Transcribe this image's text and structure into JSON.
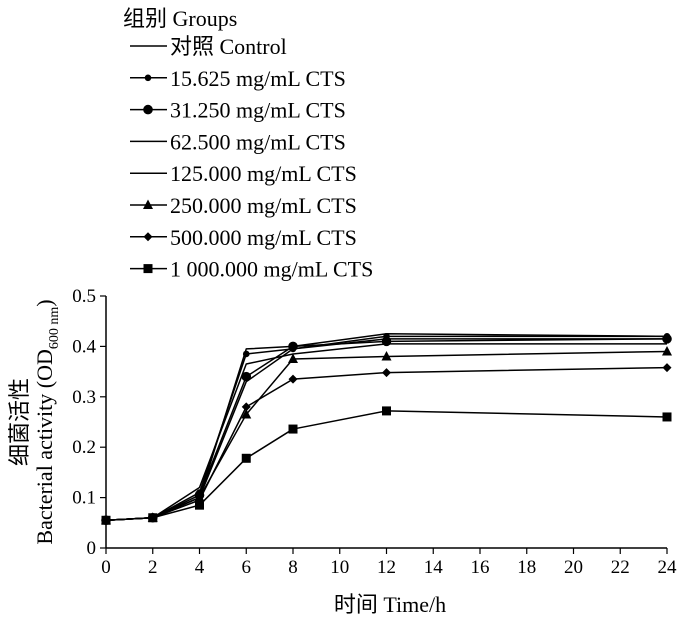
{
  "chart_data": {
    "type": "line",
    "legend_title": "组别 Groups",
    "legend_position": "top-left",
    "xlabel": "时间  Time/h",
    "ylabel_cn": "细菌活性",
    "ylabel_en_prefix": "Bacterial activity (OD",
    "ylabel_en_sub": "600 nm",
    "ylabel_en_suffix": ")",
    "xlim": [
      0,
      24
    ],
    "ylim": [
      0,
      0.5
    ],
    "x_ticks": [
      "0",
      "2",
      "4",
      "6",
      "8",
      "10",
      "12",
      "14",
      "16",
      "18",
      "20",
      "22",
      "24"
    ],
    "y_ticks": [
      "0",
      "0.1",
      "0.2",
      "0.3",
      "0.4",
      "0.5"
    ],
    "grid": false,
    "x": [
      0,
      2,
      4,
      6,
      8,
      12,
      24
    ],
    "series": [
      {
        "name": "对照  Control",
        "marker": "none",
        "values": [
          0.055,
          0.06,
          0.1,
          0.395,
          0.4,
          0.425,
          0.42
        ]
      },
      {
        "name": "15.625  mg/mL CTS",
        "marker": "circle-small",
        "values": [
          0.055,
          0.06,
          0.11,
          0.385,
          0.395,
          0.42,
          0.42
        ]
      },
      {
        "name": "31.250  mg/mL CTS",
        "marker": "circle",
        "values": [
          0.055,
          0.06,
          0.105,
          0.34,
          0.4,
          0.41,
          0.415
        ]
      },
      {
        "name": "62.500  mg/mL CTS",
        "marker": "none",
        "values": [
          0.055,
          0.06,
          0.1,
          0.33,
          0.395,
          0.415,
          0.415
        ]
      },
      {
        "name": "125.000  mg/mL CTS",
        "marker": "none",
        "values": [
          0.055,
          0.06,
          0.12,
          0.365,
          0.385,
          0.405,
          0.405
        ]
      },
      {
        "name": "250.000  mg/mL CTS",
        "marker": "triangle",
        "values": [
          0.055,
          0.06,
          0.1,
          0.265,
          0.375,
          0.38,
          0.39
        ]
      },
      {
        "name": "500.000  mg/mL CTS",
        "marker": "diamond",
        "values": [
          0.055,
          0.06,
          0.095,
          0.28,
          0.335,
          0.348,
          0.358
        ]
      },
      {
        "name": "1 000.000  mg/mL CTS",
        "marker": "square",
        "values": [
          0.055,
          0.06,
          0.085,
          0.178,
          0.236,
          0.272,
          0.26
        ]
      }
    ]
  }
}
